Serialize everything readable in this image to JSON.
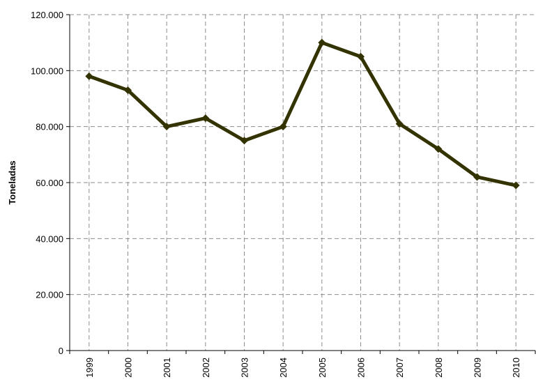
{
  "chart_data": {
    "type": "line",
    "title": "",
    "xlabel": "",
    "ylabel": "Toneladas",
    "categories": [
      "1999",
      "2000",
      "2001",
      "2002",
      "2003",
      "2004",
      "2005",
      "2006",
      "2007",
      "2008",
      "2009",
      "2010"
    ],
    "series": [
      {
        "values": [
          98000,
          93000,
          80000,
          83000,
          75000,
          80000,
          110000,
          105000,
          81000,
          72000,
          62000,
          59000
        ]
      }
    ],
    "ylim": [
      0,
      120000
    ],
    "yticks": [
      0,
      20000,
      40000,
      60000,
      80000,
      100000,
      120000
    ],
    "ytick_labels": [
      "0",
      "20.000",
      "40.000",
      "60.000",
      "80.000",
      "100.000",
      "120.000"
    ],
    "grid": true,
    "legend": "none",
    "colors": {
      "line": "#333300",
      "marker": "#333300"
    }
  }
}
